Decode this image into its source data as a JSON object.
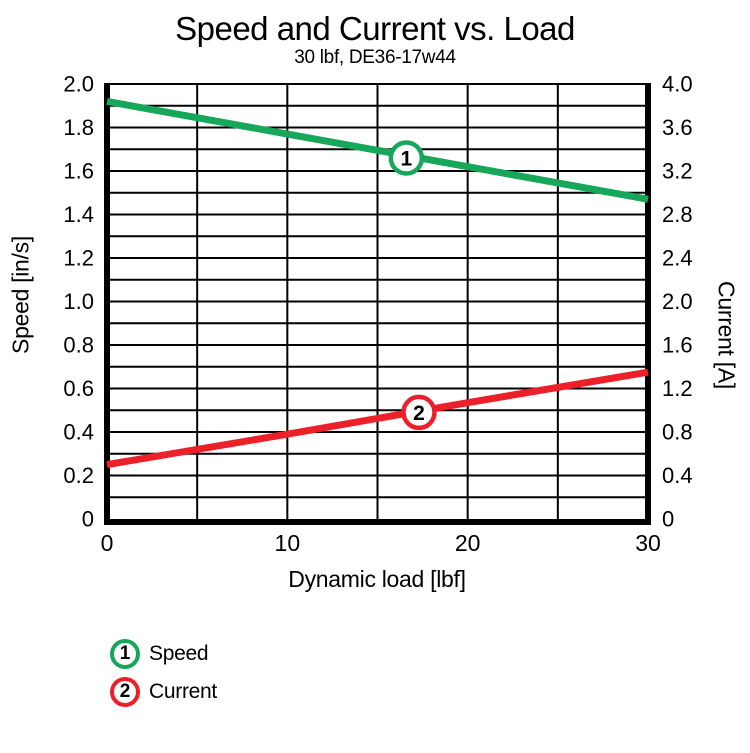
{
  "title": "Speed and Current vs. Load",
  "subtitle": "30 lbf, DE36-17w44",
  "colors": {
    "speed": "#17A75A",
    "current": "#EB2028",
    "grid": "#000000",
    "background": "#FFFFFF"
  },
  "chart_data": {
    "type": "line",
    "title": "Speed and Current vs. Load",
    "subtitle": "30 lbf, DE36-17w44",
    "xlabel": "Dynamic load [lbf]",
    "xlim": [
      0,
      30
    ],
    "x_grid_step": 5,
    "x_ticks": [
      "0",
      "10",
      "20",
      "30"
    ],
    "x_tick_values": [
      0,
      10,
      20,
      30
    ],
    "grid": true,
    "axes_left": {
      "title": "Speed [in/s]",
      "lim": [
        0,
        2.0
      ],
      "grid_step": 0.1,
      "tick_step": 0.2,
      "ticks": [
        "0",
        "0.2",
        "0.4",
        "0.6",
        "0.8",
        "1.0",
        "1.2",
        "1.4",
        "1.6",
        "1.8",
        "2.0"
      ]
    },
    "axes_right": {
      "title": "Current [A]",
      "lim": [
        0,
        4.0
      ],
      "tick_step": 0.4,
      "ticks": [
        "0",
        "0.4",
        "0.8",
        "1.2",
        "1.6",
        "2.0",
        "2.4",
        "2.8",
        "3.2",
        "3.6",
        "4.0"
      ]
    },
    "series": [
      {
        "name": "Speed",
        "axis": "left",
        "unit": "in/s",
        "color": "#17A75A",
        "x": [
          0,
          10,
          20,
          30
        ],
        "y": [
          1.92,
          1.77,
          1.62,
          1.47
        ],
        "marker": {
          "symbol": "1",
          "x": 16.6,
          "y": 1.66
        }
      },
      {
        "name": "Current",
        "axis": "right",
        "unit": "A",
        "color": "#EB2028",
        "x": [
          0,
          10,
          20,
          30
        ],
        "y": [
          0.5,
          0.78,
          1.07,
          1.35
        ],
        "marker": {
          "symbol": "2",
          "x": 17.3,
          "y": 0.98
        }
      }
    ],
    "legend": {
      "position": "bottom-left",
      "items": [
        {
          "symbol": "1",
          "label": "Speed"
        },
        {
          "symbol": "2",
          "label": "Current"
        }
      ]
    }
  }
}
